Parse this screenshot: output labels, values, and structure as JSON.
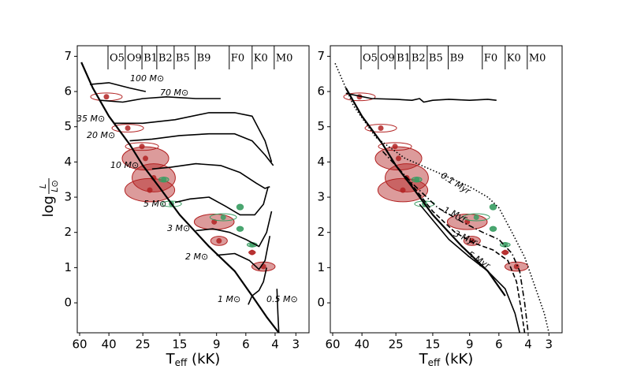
{
  "chart_data": [
    {
      "type": "line",
      "ylabel": "log",
      "ylabel_num": "L",
      "ylabel_den": "L⊙",
      "xlabel": "T",
      "xlabel_sub": "eff",
      "xlabel_unit": "(kK)",
      "xscale": "log",
      "xlim": [
        62,
        2.5
      ],
      "ylim": [
        -0.85,
        7.3
      ],
      "xticks": [
        60,
        40,
        25,
        15,
        9,
        6,
        4,
        3
      ],
      "yticks": [
        0,
        1,
        2,
        3,
        4,
        5,
        6,
        7
      ],
      "spectral_types": {
        "labels": [
          "O5",
          "O9",
          "B1",
          "B2",
          "B5",
          "B9",
          "F0",
          "K0",
          "M0"
        ],
        "teff": [
          40.5,
          31.9,
          25.3,
          20.6,
          16.2,
          12.1,
          7.55,
          5.5,
          4.05
        ]
      },
      "zams": {
        "x": [
          58.6,
          50,
          40,
          30,
          25,
          20,
          15,
          10,
          7,
          5.5,
          4.5,
          3.8
        ],
        "y": [
          6.83,
          6.1,
          5.3,
          4.5,
          3.9,
          3.3,
          2.5,
          1.6,
          0.9,
          0.2,
          -0.4,
          -0.85
        ]
      },
      "series": [
        {
          "name": "100 M⊙",
          "color": "#000000",
          "dash": "solid",
          "x": [
            52,
            40,
            30,
            24
          ],
          "y": [
            6.2,
            6.25,
            6.1,
            6.0
          ]
        },
        {
          "name": "70 M⊙",
          "color": "#000000",
          "dash": "solid",
          "x": [
            45,
            33,
            25,
            18,
            12,
            8.5
          ],
          "y": [
            5.75,
            5.7,
            5.8,
            5.85,
            5.8,
            5.8
          ]
        },
        {
          "name": "35 M⊙",
          "color": "#000000",
          "dash": "solid",
          "x": [
            37,
            25,
            16,
            10,
            7,
            5.5,
            4.6,
            4.2
          ],
          "y": [
            5.1,
            5.1,
            5.2,
            5.4,
            5.4,
            5.3,
            4.6,
            4.0
          ]
        },
        {
          "name": "20 M⊙",
          "color": "#000000",
          "dash": "solid",
          "x": [
            30,
            22,
            15,
            10,
            7,
            5.5,
            4.6,
            4.1
          ],
          "y": [
            4.6,
            4.65,
            4.75,
            4.8,
            4.8,
            4.6,
            4.2,
            3.9
          ]
        },
        {
          "name": "10 M⊙",
          "color": "#000000",
          "dash": "solid",
          "x": [
            22,
            17,
            12,
            8.5,
            6.5,
            5.2,
            4.6,
            4.3
          ],
          "y": [
            3.8,
            3.85,
            3.95,
            3.9,
            3.7,
            3.4,
            3.25,
            3.3
          ]
        },
        {
          "name": "5 M⊙",
          "color": "#000000",
          "dash": "solid",
          "x": [
            16,
            13,
            10,
            8,
            6.5,
            5.3,
            4.7,
            4.4
          ],
          "y": [
            2.85,
            2.95,
            3.0,
            2.75,
            2.5,
            2.5,
            2.8,
            3.3
          ]
        },
        {
          "name": "3 M⊙",
          "color": "#000000",
          "dash": "solid",
          "x": [
            12,
            9.5,
            7.5,
            6,
            5,
            4.5,
            4.2
          ],
          "y": [
            2.05,
            2.1,
            2.0,
            1.8,
            1.6,
            2.0,
            2.6
          ]
        },
        {
          "name": "2 M⊙",
          "color": "#000000",
          "dash": "solid",
          "x": [
            9,
            7,
            5.7,
            5,
            4.6,
            4.3
          ],
          "y": [
            1.35,
            1.4,
            1.2,
            0.95,
            1.2,
            1.9
          ]
        },
        {
          "name": "1 M⊙",
          "color": "#000000",
          "dash": "solid",
          "x": [
            5.8,
            5.5,
            5.0,
            4.7,
            4.5
          ],
          "y": [
            -0.05,
            0.2,
            0.35,
            0.6,
            1.0
          ]
        },
        {
          "name": "0.5 M⊙",
          "color": "#000000",
          "dash": "solid",
          "x": [
            3.8,
            3.85,
            3.9
          ],
          "y": [
            -0.85,
            -0.3,
            0.4
          ]
        }
      ],
      "stars": {
        "x": [
          41.4,
          30.8,
          25.3,
          24.1,
          21.5,
          22.7,
          9.3,
          8.7,
          4.7,
          5.5,
          18.7,
          16.8,
          8.2,
          6.5,
          6.5,
          5.5
        ],
        "y": [
          5.85,
          4.96,
          4.44,
          4.1,
          3.55,
          3.2,
          2.3,
          1.76,
          1.03,
          1.43,
          3.5,
          2.81,
          2.43,
          2.72,
          2.1,
          1.65
        ],
        "xerr": [
          0.095,
          0.095,
          0.1,
          0.14,
          0.13,
          0.15,
          0.12,
          0.05,
          0.07,
          0.02,
          0.03,
          0.06,
          0.08,
          0.02,
          0.02,
          0.03
        ],
        "yerr": [
          0.11,
          0.11,
          0.11,
          0.33,
          0.4,
          0.33,
          0.22,
          0.13,
          0.13,
          0.05,
          0.07,
          0.08,
          0.1,
          0.08,
          0.07,
          0.06
        ],
        "color": [
          "#b22222",
          "#b22222",
          "#b22222",
          "#b22222",
          "#b22222",
          "#b22222",
          "#b22222",
          "#b22222",
          "#b22222",
          "#b22222",
          "#3a9d63",
          "#3a9d63",
          "#3a9d63",
          "#3a9d63",
          "#3a9d63",
          "#3a9d63"
        ],
        "filled": [
          false,
          false,
          false,
          true,
          true,
          true,
          true,
          true,
          true,
          true,
          true,
          false,
          false,
          true,
          true,
          true
        ]
      }
    },
    {
      "type": "line",
      "xlabel": "T",
      "xlabel_sub": "eff",
      "xlabel_unit": "(kK)",
      "xscale": "log",
      "xlim": [
        62,
        2.5
      ],
      "ylim": [
        -0.85,
        7.3
      ],
      "xticks": [
        60,
        40,
        25,
        15,
        9,
        6,
        4,
        3
      ],
      "yticks": [
        0,
        1,
        2,
        3,
        4,
        5,
        6,
        7
      ],
      "spectral_types": {
        "labels": [
          "O5",
          "O9",
          "B1",
          "B2",
          "B5",
          "B9",
          "F0",
          "K0",
          "M0"
        ],
        "teff": [
          40.5,
          31.9,
          25.3,
          20.6,
          16.2,
          12.1,
          7.55,
          5.5,
          4.05
        ]
      },
      "zams": {
        "x": [
          50,
          40,
          30,
          25,
          20,
          15,
          10,
          7,
          5.5
        ],
        "y": [
          6.1,
          5.3,
          4.5,
          3.9,
          3.3,
          2.5,
          1.6,
          0.9,
          0.2
        ]
      },
      "series": [
        {
          "name": "0.1 Myr",
          "color": "#000000",
          "dash": "dotted",
          "x": [
            58,
            45,
            33,
            22,
            14,
            9,
            7,
            6,
            5,
            4.2,
            3.6,
            3.2,
            3.0
          ],
          "y": [
            6.8,
            5.6,
            4.7,
            4.1,
            3.7,
            3.3,
            3.0,
            2.7,
            2.0,
            1.3,
            0.4,
            -0.3,
            -0.85
          ]
        },
        {
          "name": "1 Myr",
          "color": "#000000",
          "dash": "dashdot",
          "x": [
            30,
            20,
            14,
            10,
            7.5,
            6,
            5,
            4.5,
            4.2,
            4.0
          ],
          "y": [
            4.3,
            3.4,
            2.7,
            2.3,
            2.0,
            1.8,
            1.4,
            0.9,
            0,
            -0.85
          ]
        },
        {
          "name": "3 Myr",
          "color": "#000000",
          "dash": "dashed",
          "x": [
            22,
            15,
            11,
            8.5,
            6.5,
            5.3,
            4.7,
            4.4,
            4.2
          ],
          "y": [
            3.6,
            2.6,
            2.0,
            1.7,
            1.5,
            1.2,
            0.6,
            -0.2,
            -0.85
          ]
        },
        {
          "name": "5 Myr",
          "color": "#000000",
          "dash": "solid",
          "x": [
            50,
            35,
            25,
            20,
            18,
            17,
            15,
            12,
            9,
            7,
            6.2,
            null,
            18,
            12,
            9,
            7,
            5.5,
            4.8,
            4.5
          ],
          "y": [
            5.95,
            5.8,
            5.78,
            5.75,
            5.8,
            5.7,
            5.75,
            5.78,
            5.75,
            5.78,
            5.75,
            null,
            2.8,
            1.8,
            1.3,
            0.9,
            0.4,
            -0.3,
            -0.85
          ]
        }
      ],
      "stars": {
        "x": [
          41.4,
          30.8,
          25.3,
          24.1,
          21.5,
          22.7,
          9.3,
          8.7,
          4.7,
          5.5,
          18.7,
          16.8,
          8.2,
          6.5,
          6.5,
          5.5
        ],
        "y": [
          5.85,
          4.96,
          4.44,
          4.1,
          3.55,
          3.2,
          2.3,
          1.76,
          1.03,
          1.43,
          3.5,
          2.81,
          2.43,
          2.72,
          2.1,
          1.65
        ],
        "xerr": [
          0.095,
          0.095,
          0.1,
          0.14,
          0.13,
          0.15,
          0.12,
          0.05,
          0.07,
          0.02,
          0.03,
          0.06,
          0.08,
          0.02,
          0.02,
          0.03
        ],
        "yerr": [
          0.11,
          0.11,
          0.11,
          0.33,
          0.4,
          0.33,
          0.22,
          0.13,
          0.13,
          0.05,
          0.07,
          0.08,
          0.1,
          0.08,
          0.07,
          0.06
        ],
        "color": [
          "#b22222",
          "#b22222",
          "#b22222",
          "#b22222",
          "#b22222",
          "#b22222",
          "#b22222",
          "#b22222",
          "#b22222",
          "#b22222",
          "#3a9d63",
          "#3a9d63",
          "#3a9d63",
          "#3a9d63",
          "#3a9d63",
          "#3a9d63"
        ],
        "filled": [
          false,
          false,
          false,
          true,
          true,
          true,
          true,
          true,
          true,
          true,
          true,
          false,
          false,
          true,
          true,
          true
        ]
      }
    }
  ]
}
